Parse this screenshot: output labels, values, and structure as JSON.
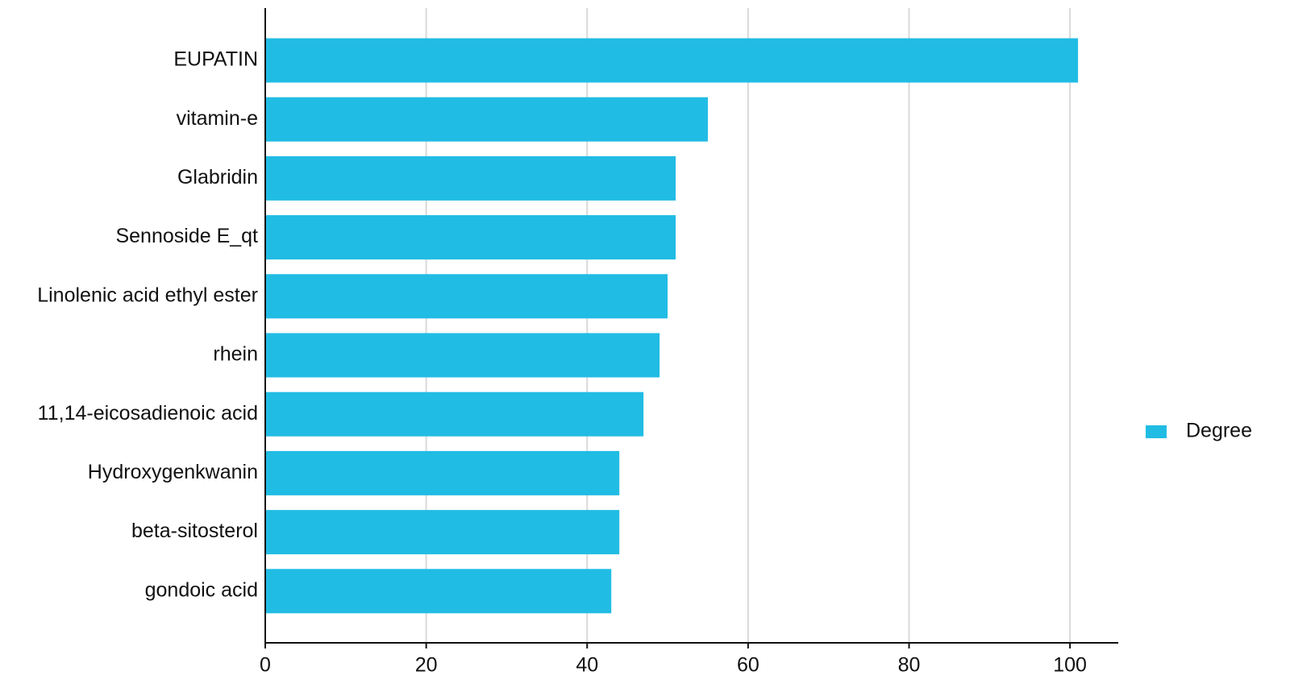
{
  "chart_data": {
    "type": "barh",
    "categories": [
      "EUPATIN",
      "vitamin-e",
      "Glabridin",
      "Sennoside E_qt",
      "Linolenic acid ethyl ester",
      "rhein",
      "11,14-eicosadienoic acid",
      "Hydroxygenkwanin",
      "beta-sitosterol",
      "gondoic acid"
    ],
    "series": [
      {
        "name": "Degree",
        "color": "#21bce4",
        "values": [
          101,
          55,
          51,
          51,
          50,
          49,
          47,
          44,
          44,
          43
        ]
      }
    ],
    "xlim": [
      0,
      106
    ],
    "xticks": [
      0,
      20,
      40,
      60,
      80,
      100
    ],
    "grid": true,
    "legend": "right"
  }
}
